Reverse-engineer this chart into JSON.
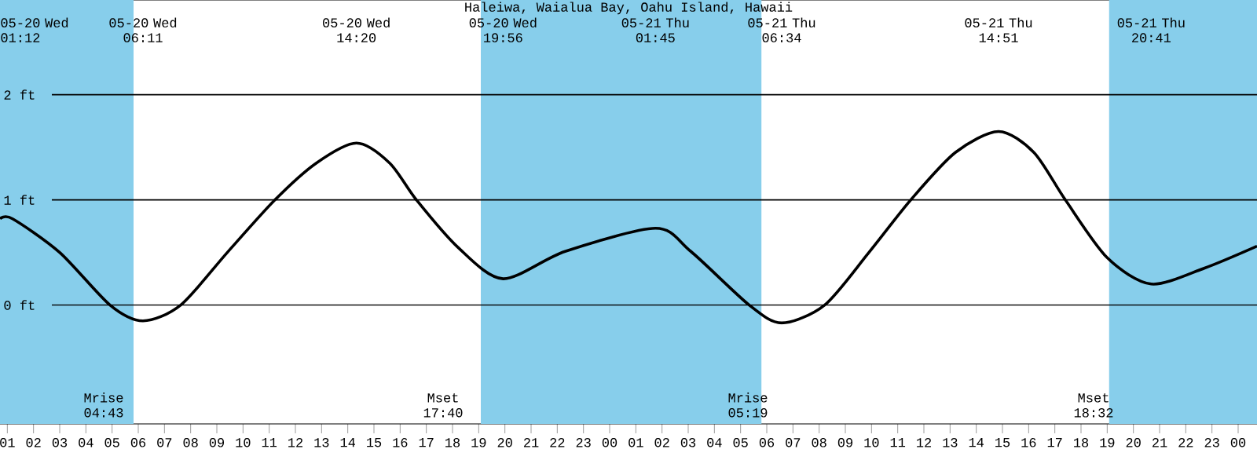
{
  "chart_data": {
    "type": "line",
    "title": "Haleiwa, Waialua Bay, Oahu Island, Hawaii",
    "series": [
      {
        "color": "#000000",
        "x": [
          0.72,
          1.2,
          3.0,
          4.92,
          6.18,
          7.62,
          9.4,
          11.22,
          12.8,
          14.33,
          15.6,
          16.62,
          18.2,
          19.93,
          22.3,
          25.75,
          27.1,
          29.33,
          30.57,
          32.21,
          33.9,
          35.5,
          37.2,
          38.85,
          40.2,
          41.4,
          43.0,
          44.68,
          46.7,
          48.72
        ],
        "values": [
          0.82,
          0.82,
          0.5,
          0.0,
          -0.15,
          0.0,
          0.5,
          1.0,
          1.35,
          1.54,
          1.35,
          1.0,
          0.55,
          0.25,
          0.51,
          0.73,
          0.51,
          0.0,
          -0.17,
          0.0,
          0.5,
          1.0,
          1.45,
          1.65,
          1.45,
          1.0,
          0.45,
          0.2,
          0.35,
          0.56
        ]
      }
    ],
    "xlim": [
      0.72,
      48.72
    ],
    "ylim": [
      -1.13,
      2.9
    ],
    "xticks": [
      {
        "value": 1,
        "label": "01"
      },
      {
        "value": 2,
        "label": "02"
      },
      {
        "value": 3,
        "label": "03"
      },
      {
        "value": 4,
        "label": "04"
      },
      {
        "value": 5,
        "label": "05"
      },
      {
        "value": 6,
        "label": "06"
      },
      {
        "value": 7,
        "label": "07"
      },
      {
        "value": 8,
        "label": "08"
      },
      {
        "value": 9,
        "label": "09"
      },
      {
        "value": 10,
        "label": "10"
      },
      {
        "value": 11,
        "label": "11"
      },
      {
        "value": 12,
        "label": "12"
      },
      {
        "value": 13,
        "label": "13"
      },
      {
        "value": 14,
        "label": "14"
      },
      {
        "value": 15,
        "label": "15"
      },
      {
        "value": 16,
        "label": "16"
      },
      {
        "value": 17,
        "label": "17"
      },
      {
        "value": 18,
        "label": "18"
      },
      {
        "value": 19,
        "label": "19"
      },
      {
        "value": 20,
        "label": "20"
      },
      {
        "value": 21,
        "label": "21"
      },
      {
        "value": 22,
        "label": "22"
      },
      {
        "value": 23,
        "label": "23"
      },
      {
        "value": 24,
        "label": "00"
      },
      {
        "value": 25,
        "label": "01"
      },
      {
        "value": 26,
        "label": "02"
      },
      {
        "value": 27,
        "label": "03"
      },
      {
        "value": 28,
        "label": "04"
      },
      {
        "value": 29,
        "label": "05"
      },
      {
        "value": 30,
        "label": "06"
      },
      {
        "value": 31,
        "label": "07"
      },
      {
        "value": 32,
        "label": "08"
      },
      {
        "value": 33,
        "label": "09"
      },
      {
        "value": 34,
        "label": "10"
      },
      {
        "value": 35,
        "label": "11"
      },
      {
        "value": 36,
        "label": "12"
      },
      {
        "value": 37,
        "label": "13"
      },
      {
        "value": 38,
        "label": "14"
      },
      {
        "value": 39,
        "label": "15"
      },
      {
        "value": 40,
        "label": "16"
      },
      {
        "value": 41,
        "label": "17"
      },
      {
        "value": 42,
        "label": "18"
      },
      {
        "value": 43,
        "label": "19"
      },
      {
        "value": 44,
        "label": "20"
      },
      {
        "value": 45,
        "label": "21"
      },
      {
        "value": 46,
        "label": "22"
      },
      {
        "value": 47,
        "label": "23"
      },
      {
        "value": 48,
        "label": "00"
      }
    ],
    "yticks": [
      {
        "value": 0,
        "label": "0 ft"
      },
      {
        "value": 1,
        "label": "1 ft"
      },
      {
        "value": 2,
        "label": "2 ft"
      }
    ],
    "grid": "y",
    "line_style": "solid",
    "marker": "none",
    "bands": [
      {
        "axis": "x",
        "from": 0.72,
        "to": 5.82,
        "color": "#87ceeb"
      },
      {
        "axis": "x",
        "from": 19.08,
        "to": 29.8,
        "color": "#87ceeb"
      },
      {
        "axis": "x",
        "from": 43.07,
        "to": 48.72,
        "color": "#87ceeb"
      }
    ],
    "annotations": [
      "05-20 Wed 01:12",
      "05-20 Wed 06:11",
      "05-20 Wed 14:20",
      "05-20 Wed 19:56",
      "05-21 Thu 01:45",
      "05-21 Thu 06:34",
      "05-21 Thu 14:51",
      "05-21 Thu 20:41",
      "Mrise 04:43",
      "Mset 17:40",
      "Mrise 05:19",
      "Mset 18:32"
    ]
  }
}
